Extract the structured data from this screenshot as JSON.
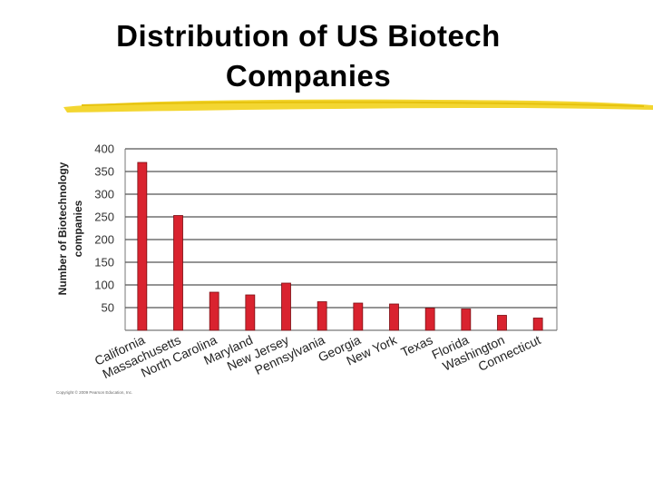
{
  "slide": {
    "title_line1": "Distribution of US Biotech",
    "title_line2": "Companies",
    "copyright": "Copyright © 2009 Pearson Education, Inc.",
    "underline_color": "#f2d21b"
  },
  "chart_data": {
    "type": "bar",
    "title": "",
    "xlabel": "",
    "ylabel": "Number of Biotechnology companies",
    "ylabel_lines": [
      "Number of Biotechnology",
      "companies"
    ],
    "categories": [
      "California",
      "Massachusetts",
      "North Carolina",
      "Maryland",
      "New Jersey",
      "Pennsylvania",
      "Georgia",
      "New York",
      "Texas",
      "Florida",
      "Washington",
      "Connecticut"
    ],
    "values": [
      370,
      253,
      84,
      78,
      104,
      63,
      60,
      58,
      49,
      47,
      33,
      27
    ],
    "ylim": [
      0,
      400
    ],
    "yticks": [
      50,
      100,
      150,
      200,
      250,
      300,
      350,
      400
    ],
    "grid": true,
    "bar_color": "#d9232f",
    "bar_stroke": "#7a0d12"
  }
}
